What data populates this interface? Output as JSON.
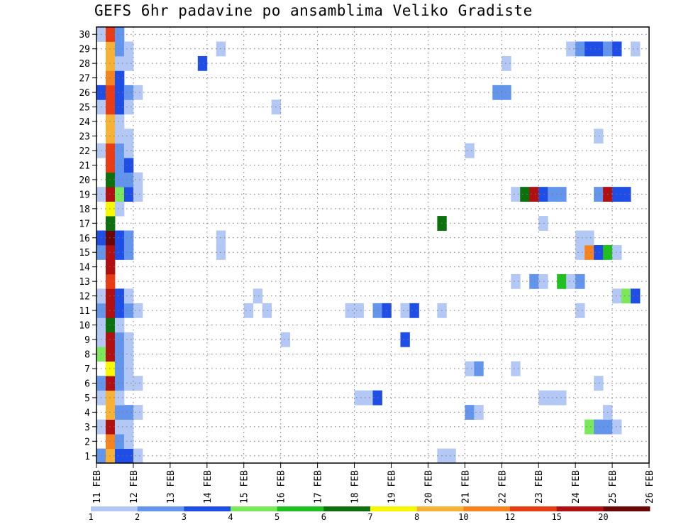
{
  "chart_data": {
    "type": "heatmap",
    "title": "GEFS 6hr padavine po ansamblima Veliko Gradiste",
    "x_tick_labels": [
      "11 FEB",
      "12 FEB",
      "13 FEB",
      "14 FEB",
      "15 FEB",
      "16 FEB",
      "17 FEB",
      "18 FEB",
      "19 FEB",
      "20 FEB",
      "21 FEB",
      "22 FEB",
      "23 FEB",
      "24 FEB",
      "25 FEB",
      "26 FEB"
    ],
    "y_tick_labels": [
      "1",
      "2",
      "3",
      "4",
      "5",
      "6",
      "7",
      "8",
      "9",
      "10",
      "11",
      "12",
      "13",
      "14",
      "15",
      "16",
      "17",
      "18",
      "19",
      "20",
      "21",
      "22",
      "23",
      "24",
      "25",
      "26",
      "27",
      "28",
      "29",
      "30"
    ],
    "members": 30,
    "steps_per_day": 4,
    "time_steps": 60,
    "grid": true,
    "legend_placement": "bottom",
    "colorbar": {
      "labels": [
        "1",
        "2",
        "3",
        "4",
        "5",
        "6",
        "7",
        "8",
        "10",
        "12",
        "15",
        "20"
      ],
      "colors": [
        "#b4c8f5",
        "#6495ed",
        "#1f4ee6",
        "#7ae85a",
        "#20c020",
        "#0c700c",
        "#f8f800",
        "#f7b236",
        "#f7831e",
        "#ea3c14",
        "#b01010",
        "#6b0606"
      ]
    },
    "data": [
      [
        1,
        1,
        2
      ],
      [
        1,
        2,
        8
      ],
      [
        1,
        3,
        3
      ],
      [
        1,
        4,
        3
      ],
      [
        1,
        5,
        1
      ],
      [
        1,
        38,
        1
      ],
      [
        1,
        39,
        1
      ],
      [
        2,
        2,
        9
      ],
      [
        2,
        3,
        2
      ],
      [
        2,
        4,
        1
      ],
      [
        3,
        1,
        1
      ],
      [
        3,
        2,
        11
      ],
      [
        3,
        3,
        1
      ],
      [
        3,
        4,
        1
      ],
      [
        3,
        54,
        4
      ],
      [
        3,
        55,
        2
      ],
      [
        3,
        56,
        2
      ],
      [
        3,
        57,
        1
      ],
      [
        4,
        2,
        8
      ],
      [
        4,
        3,
        2
      ],
      [
        4,
        4,
        2
      ],
      [
        4,
        5,
        1
      ],
      [
        4,
        41,
        2
      ],
      [
        4,
        42,
        1
      ],
      [
        4,
        56,
        1
      ],
      [
        5,
        1,
        1
      ],
      [
        5,
        2,
        8
      ],
      [
        5,
        3,
        1
      ],
      [
        5,
        29,
        1
      ],
      [
        5,
        30,
        1
      ],
      [
        5,
        31,
        3
      ],
      [
        5,
        49,
        1
      ],
      [
        5,
        50,
        1
      ],
      [
        5,
        51,
        1
      ],
      [
        6,
        1,
        2
      ],
      [
        6,
        2,
        11
      ],
      [
        6,
        3,
        2
      ],
      [
        6,
        4,
        1
      ],
      [
        6,
        5,
        1
      ],
      [
        6,
        55,
        1
      ],
      [
        7,
        2,
        7
      ],
      [
        7,
        3,
        2
      ],
      [
        7,
        4,
        1
      ],
      [
        7,
        41,
        1
      ],
      [
        7,
        42,
        2
      ],
      [
        7,
        46,
        1
      ],
      [
        8,
        1,
        4
      ],
      [
        8,
        2,
        11
      ],
      [
        8,
        3,
        2
      ],
      [
        8,
        4,
        1
      ],
      [
        9,
        1,
        1
      ],
      [
        9,
        2,
        11
      ],
      [
        9,
        3,
        2
      ],
      [
        9,
        4,
        1
      ],
      [
        9,
        21,
        1
      ],
      [
        9,
        34,
        3
      ],
      [
        10,
        1,
        1
      ],
      [
        10,
        2,
        6
      ],
      [
        10,
        3,
        1
      ],
      [
        11,
        1,
        2
      ],
      [
        11,
        2,
        11
      ],
      [
        11,
        3,
        3
      ],
      [
        11,
        4,
        2
      ],
      [
        11,
        5,
        1
      ],
      [
        11,
        17,
        1
      ],
      [
        11,
        19,
        1
      ],
      [
        11,
        28,
        1
      ],
      [
        11,
        29,
        1
      ],
      [
        11,
        31,
        2
      ],
      [
        11,
        32,
        3
      ],
      [
        11,
        34,
        1
      ],
      [
        11,
        35,
        3
      ],
      [
        11,
        38,
        1
      ],
      [
        11,
        53,
        1
      ],
      [
        12,
        1,
        1
      ],
      [
        12,
        2,
        11
      ],
      [
        12,
        3,
        3
      ],
      [
        12,
        4,
        1
      ],
      [
        12,
        18,
        1
      ],
      [
        12,
        57,
        1
      ],
      [
        12,
        58,
        4
      ],
      [
        12,
        59,
        3
      ],
      [
        13,
        2,
        10
      ],
      [
        13,
        46,
        1
      ],
      [
        13,
        48,
        2
      ],
      [
        13,
        49,
        1
      ],
      [
        13,
        51,
        5
      ],
      [
        13,
        52,
        1
      ],
      [
        13,
        53,
        2
      ],
      [
        14,
        2,
        11
      ],
      [
        15,
        1,
        2
      ],
      [
        15,
        2,
        11
      ],
      [
        15,
        3,
        3
      ],
      [
        15,
        4,
        2
      ],
      [
        15,
        14,
        1
      ],
      [
        15,
        53,
        1
      ],
      [
        15,
        54,
        9
      ],
      [
        15,
        55,
        3
      ],
      [
        15,
        56,
        5
      ],
      [
        15,
        57,
        1
      ],
      [
        16,
        1,
        3
      ],
      [
        16,
        2,
        12
      ],
      [
        16,
        3,
        3
      ],
      [
        16,
        4,
        2
      ],
      [
        16,
        14,
        1
      ],
      [
        16,
        53,
        1
      ],
      [
        16,
        54,
        1
      ],
      [
        17,
        2,
        6
      ],
      [
        17,
        38,
        6
      ],
      [
        17,
        49,
        1
      ],
      [
        18,
        2,
        7
      ],
      [
        18,
        3,
        1
      ],
      [
        19,
        1,
        1
      ],
      [
        19,
        2,
        11
      ],
      [
        19,
        3,
        4
      ],
      [
        19,
        4,
        3
      ],
      [
        19,
        5,
        1
      ],
      [
        19,
        46,
        1
      ],
      [
        19,
        47,
        6
      ],
      [
        19,
        48,
        11
      ],
      [
        19,
        49,
        3
      ],
      [
        19,
        50,
        2
      ],
      [
        19,
        51,
        2
      ],
      [
        19,
        55,
        2
      ],
      [
        19,
        56,
        11
      ],
      [
        19,
        57,
        3
      ],
      [
        19,
        58,
        3
      ],
      [
        20,
        2,
        6
      ],
      [
        20,
        3,
        2
      ],
      [
        20,
        4,
        2
      ],
      [
        20,
        5,
        1
      ],
      [
        21,
        2,
        10
      ],
      [
        21,
        3,
        2
      ],
      [
        21,
        4,
        3
      ],
      [
        22,
        1,
        1
      ],
      [
        22,
        2,
        10
      ],
      [
        22,
        3,
        2
      ],
      [
        22,
        4,
        1
      ],
      [
        22,
        41,
        1
      ],
      [
        23,
        2,
        8
      ],
      [
        23,
        3,
        1
      ],
      [
        23,
        4,
        1
      ],
      [
        23,
        55,
        1
      ],
      [
        24,
        2,
        8
      ],
      [
        24,
        3,
        1
      ],
      [
        25,
        1,
        1
      ],
      [
        25,
        2,
        10
      ],
      [
        25,
        3,
        3
      ],
      [
        25,
        4,
        1
      ],
      [
        25,
        20,
        1
      ],
      [
        26,
        1,
        3
      ],
      [
        26,
        2,
        10
      ],
      [
        26,
        3,
        3
      ],
      [
        26,
        4,
        2
      ],
      [
        26,
        5,
        1
      ],
      [
        26,
        44,
        2
      ],
      [
        26,
        45,
        2
      ],
      [
        27,
        2,
        9
      ],
      [
        27,
        3,
        3
      ],
      [
        28,
        2,
        8
      ],
      [
        28,
        3,
        1
      ],
      [
        28,
        4,
        1
      ],
      [
        28,
        12,
        3
      ],
      [
        28,
        45,
        1
      ],
      [
        29,
        2,
        8
      ],
      [
        29,
        3,
        2
      ],
      [
        29,
        4,
        1
      ],
      [
        29,
        14,
        1
      ],
      [
        29,
        52,
        1
      ],
      [
        29,
        53,
        2
      ],
      [
        29,
        54,
        3
      ],
      [
        29,
        55,
        3
      ],
      [
        29,
        56,
        2
      ],
      [
        29,
        57,
        3
      ],
      [
        29,
        59,
        1
      ],
      [
        30,
        1,
        1
      ],
      [
        30,
        2,
        10
      ],
      [
        30,
        3,
        2
      ]
    ]
  }
}
